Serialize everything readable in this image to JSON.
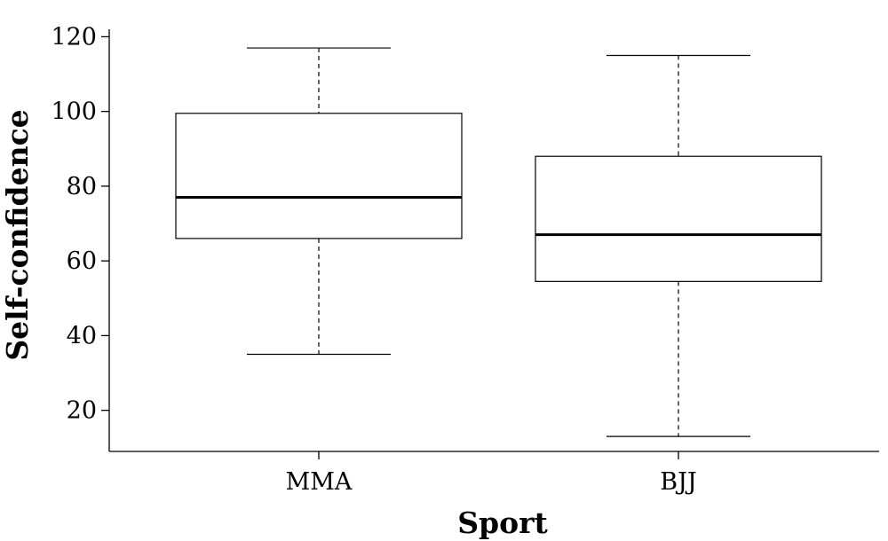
{
  "chart_data": {
    "type": "boxplot",
    "title": "",
    "xlabel": "Sport",
    "ylabel": "Self-confidence",
    "ylim": [
      9,
      122
    ],
    "yticks": [
      20,
      40,
      60,
      80,
      100,
      120
    ],
    "grid": false,
    "categories": [
      "MMA",
      "BJJ"
    ],
    "boxes": [
      {
        "category": "MMA",
        "min": 35,
        "q1": 66,
        "median": 77,
        "q3": 99.5,
        "max": 117
      },
      {
        "category": "BJJ",
        "min": 13,
        "q1": 54.5,
        "median": 67,
        "q3": 88,
        "max": 115
      }
    ]
  }
}
